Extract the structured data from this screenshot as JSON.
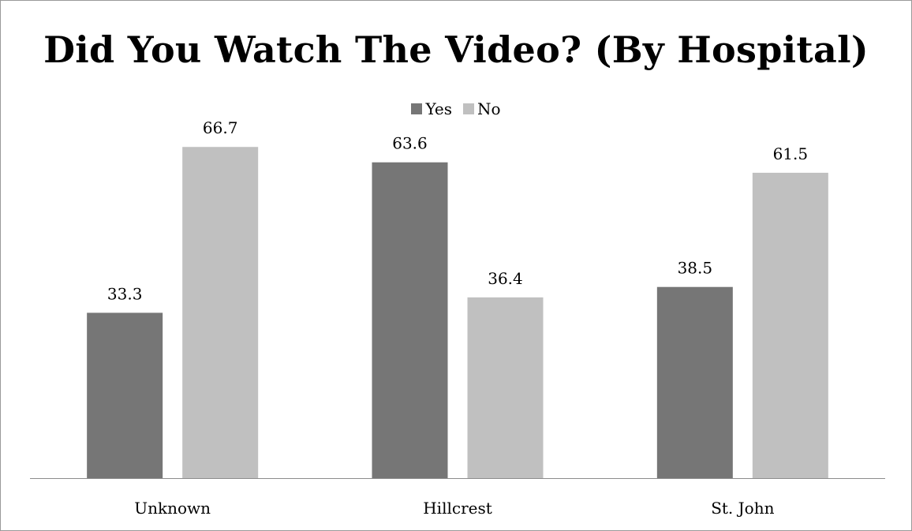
{
  "chart_data": {
    "type": "bar",
    "title": "Did You Watch The Video? (By Hospital)",
    "xlabel": "",
    "ylabel": "",
    "categories": [
      "Unknown",
      "Hillcrest",
      "St. John"
    ],
    "series": [
      {
        "name": "Yes",
        "color": "#767676",
        "values": [
          33.3,
          63.6,
          38.5
        ],
        "labels": [
          "33.3",
          "63.6",
          "38.5"
        ]
      },
      {
        "name": "No",
        "color": "#c0c0c0",
        "values": [
          66.7,
          36.4,
          61.5
        ],
        "labels": [
          "66.7",
          "36.4",
          "61.5"
        ]
      }
    ],
    "ylim": [
      0,
      75
    ],
    "grid": false,
    "legend_position": "top"
  }
}
